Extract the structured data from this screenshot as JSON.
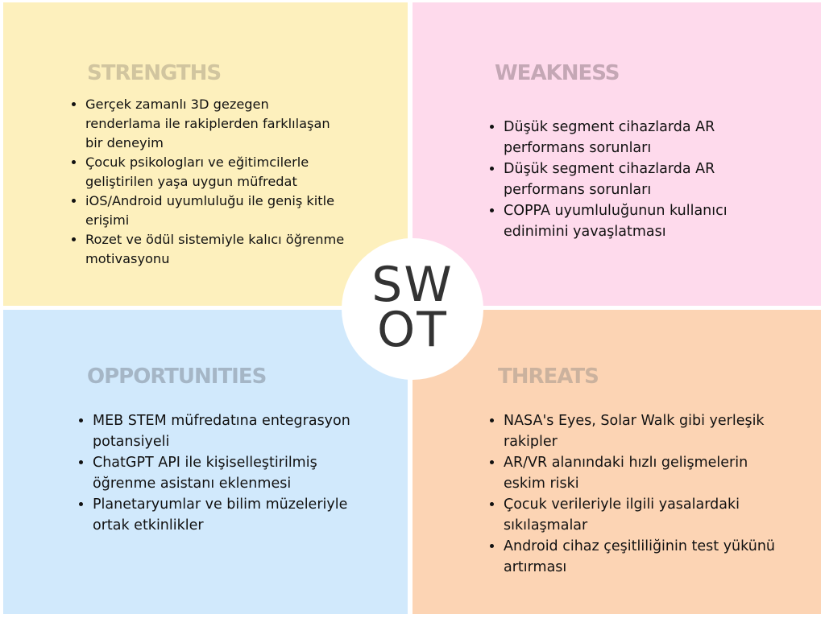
{
  "center": {
    "line1": "SW",
    "line2": "OT"
  },
  "strengths": {
    "title": "STRENGTHS",
    "items": [
      "Gerçek zamanlı 3D gezegen renderlama ile rakiplerden farklılaşan bir deneyim",
      "Çocuk psikologları ve eğitimcilerle geliştirilen yaşa uygun müfredat",
      "iOS/Android uyumluluğu ile geniş kitle erişimi",
      "Rozet ve ödül sistemiyle kalıcı öğrenme motivasyonu"
    ],
    "color": "#fdf0bd"
  },
  "weakness": {
    "title": "WEAKNESS",
    "items": [
      "Düşük segment cihazlarda AR performans sorunları",
      "Düşük segment cihazlarda AR performans sorunları",
      "COPPA uyumluluğunun kullanıcı edinimini yavaşlatması"
    ],
    "color": "#fedaec"
  },
  "opportunities": {
    "title": "OPPORTUNITIES",
    "items": [
      "MEB STEM müfredatına entegrasyon potansiyeli",
      "ChatGPT API ile kişiselleştirilmiş öğrenme asistanı eklenmesi",
      "Planetaryumlar ve bilim müzeleriyle ortak etkinlikler"
    ],
    "color": "#d1e9fc"
  },
  "threats": {
    "title": "THREATS",
    "items": [
      "NASA's Eyes, Solar Walk gibi yerleşik rakipler",
      "AR/VR alanındaki hızlı gelişmelerin eskim riski",
      "Çocuk verileriyle ilgili yasalardaki sıkılaşmalar",
      "Android cihaz çeşitliliğinin test yükünü artırması"
    ],
    "color": "#fcd4b4"
  }
}
